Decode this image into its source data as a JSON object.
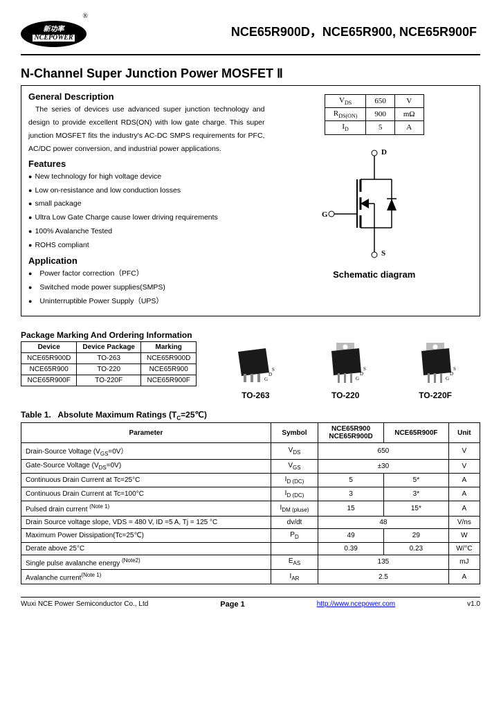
{
  "header": {
    "logo_cn": "新功率",
    "logo_en": "NCEPOWER",
    "logo_r": "®",
    "title": "NCE65R900D，NCE65R900, NCE65R900F"
  },
  "section_title": "N-Channel Super Junction Power MOSFET  Ⅱ",
  "general": {
    "heading": "General Description",
    "text": "The series of devices use advanced super junction technology and design to provide excellent RDS(ON)  with low gate charge. This super junction MOSFET fits the industry's AC-DC SMPS requirements for PFC, AC/DC power conversion, and industrial power applications."
  },
  "features": {
    "heading": "Features",
    "items": [
      "New technology for high voltage device",
      "Low on-resistance and low conduction losses",
      "small package",
      "Ultra Low Gate Charge cause lower driving requirements",
      "100% Avalanche Tested",
      "ROHS compliant"
    ]
  },
  "application": {
    "heading": "Application",
    "items": [
      "Power factor correction（PFC）",
      "Switched mode power supplies(SMPS)",
      "Uninterruptible Power Supply（UPS）"
    ]
  },
  "spec": {
    "rows": [
      [
        "VDS",
        "650",
        "V"
      ],
      [
        "RDS(ON)",
        "900",
        "mΩ"
      ],
      [
        "ID",
        "5",
        "A"
      ]
    ]
  },
  "schematic": {
    "d": "D",
    "g": "G",
    "s": "S",
    "caption": "Schematic diagram"
  },
  "pkg": {
    "heading": "Package Marking And Ordering Information",
    "headers": [
      "Device",
      "Device Package",
      "Marking"
    ],
    "rows": [
      [
        "NCE65R900D",
        "TO-263",
        "NCE65R900D"
      ],
      [
        "NCE65R900",
        "TO-220",
        "NCE65R900"
      ],
      [
        "NCE65R900F",
        "TO-220F",
        "NCE65R900F"
      ]
    ],
    "captions": [
      "TO-263",
      "TO-220",
      "TO-220F"
    ],
    "pins": {
      "g": "G",
      "d": "D",
      "s": "S"
    }
  },
  "table1": {
    "heading": "Table 1.   Absolute Maximum Ratings (TC=25℃)",
    "headers": [
      "Parameter",
      "Symbol",
      "NCE65R900\nNCE65R900D",
      "NCE65R900F",
      "Unit"
    ],
    "rows": [
      {
        "param": "Drain-Source Voltage (VGS=0V）",
        "sym": "VDS",
        "v1": "650",
        "v2": "",
        "unit": "V",
        "span": true
      },
      {
        "param": "Gate-Source Voltage (VDS=0V)",
        "sym": "VGS",
        "v1": "±30",
        "v2": "",
        "unit": "V",
        "span": true
      },
      {
        "param": "Continuous Drain Current   at Tc=25°C",
        "sym": "ID (DC)",
        "v1": "5",
        "v2": "5*",
        "unit": "A"
      },
      {
        "param": "Continuous Drain Current   at Tc=100°C",
        "sym": "ID (DC)",
        "v1": "3",
        "v2": "3*",
        "unit": "A"
      },
      {
        "param": "Pulsed drain current (Note 1)",
        "sym": "IDM (pluse)",
        "v1": "15",
        "v2": "15*",
        "unit": "A"
      },
      {
        "param": "Drain Source voltage slope, VDS = 480 V, ID =5 A, Tj = 125 °C",
        "sym": "dv/dt",
        "v1": "48",
        "v2": "",
        "unit": "V/ns",
        "span": true
      },
      {
        "param": "Maximum Power Dissipation(Tc=25℃)",
        "sym": "PD",
        "v1": "49",
        "v2": "29",
        "unit": "W"
      },
      {
        "param": "                              Derate above 25°C",
        "sym": "",
        "v1": "0.39",
        "v2": "0.23",
        "unit": "W/°C"
      },
      {
        "param": "Single pulse avalanche energy (Note2)",
        "sym": "EAS",
        "v1": "135",
        "v2": "",
        "unit": "mJ",
        "span": true
      },
      {
        "param": "Avalanche current(Note 1)",
        "sym": "IAR",
        "v1": "2.5",
        "v2": "",
        "unit": "A",
        "span": true
      }
    ]
  },
  "footer": {
    "company": "Wuxi NCE Power Semiconductor Co., Ltd",
    "page": "Page  1",
    "url": "http://www.ncepower.com",
    "version": "v1.0"
  }
}
